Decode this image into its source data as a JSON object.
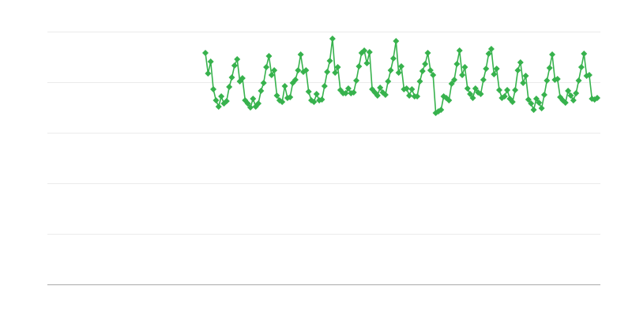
{
  "chart_data": {
    "type": "line",
    "title": "",
    "xlabel": "",
    "ylabel": "",
    "ylim": [
      0,
      320
    ],
    "grid": true,
    "gridlines_y": [
      64,
      128,
      192,
      256,
      320
    ],
    "marker": "diamond",
    "color": "#37b24d",
    "grid_color": "#ebebeb",
    "axis_color": "#aaaaaa",
    "series": [
      {
        "values": [
          293,
          267,
          282,
          247,
          233,
          225,
          238,
          229,
          232,
          250,
          262,
          277,
          285,
          257,
          261,
          233,
          229,
          224,
          235,
          225,
          229,
          245,
          255,
          275,
          289,
          265,
          271,
          239,
          233,
          231,
          251,
          236,
          237,
          255,
          259,
          271,
          291,
          269,
          271,
          244,
          233,
          231,
          241,
          233,
          234,
          251,
          269,
          283,
          311,
          268,
          275,
          246,
          242,
          242,
          248,
          242,
          243,
          258,
          276,
          293,
          296,
          280,
          294,
          247,
          243,
          239,
          249,
          243,
          240,
          257,
          271,
          286,
          308,
          268,
          276,
          247,
          248,
          239,
          247,
          238,
          238,
          257,
          270,
          279,
          293,
          271,
          265,
          217,
          219,
          221,
          238,
          236,
          233,
          254,
          259,
          279,
          296,
          265,
          275,
          248,
          241,
          236,
          248,
          243,
          241,
          259,
          273,
          292,
          298,
          266,
          273,
          246,
          236,
          238,
          246,
          235,
          231,
          246,
          271,
          281,
          255,
          264,
          234,
          229,
          221,
          235,
          230,
          223,
          240,
          258,
          274,
          291,
          259,
          260,
          237,
          233,
          230,
          245,
          239,
          233,
          242,
          258,
          275,
          292,
          264,
          265,
          235,
          234,
          236
        ]
      }
    ]
  }
}
